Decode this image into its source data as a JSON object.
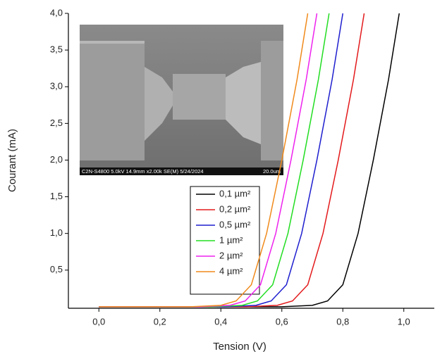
{
  "chart_data": {
    "type": "line",
    "xlabel": "Tension (V)",
    "ylabel": "Courant (mA)",
    "xlim": [
      -0.1,
      1.1
    ],
    "ylim": [
      -0.02,
      4.0
    ],
    "xticks": [
      {
        "value": 0,
        "label": "0,0"
      },
      {
        "value": 0.2,
        "label": "0,2"
      },
      {
        "value": 0.4,
        "label": "0,4"
      },
      {
        "value": 0.6,
        "label": "0,6"
      },
      {
        "value": 0.8,
        "label": "0,8"
      },
      {
        "value": 1.0,
        "label": "1,0"
      }
    ],
    "yticks": [
      {
        "value": 0.5,
        "label": "0,5"
      },
      {
        "value": 1.0,
        "label": "1,0"
      },
      {
        "value": 1.5,
        "label": "1,5"
      },
      {
        "value": 2.0,
        "label": "2,0"
      },
      {
        "value": 2.5,
        "label": "2,5"
      },
      {
        "value": 3.0,
        "label": "3,0"
      },
      {
        "value": 3.5,
        "label": "3,5"
      },
      {
        "value": 4.0,
        "label": "4,0"
      }
    ],
    "series": [
      {
        "name": "0,1 µm²",
        "color": "#000000",
        "x": [
          0,
          0.5,
          0.6,
          0.7,
          0.75,
          0.8,
          0.85,
          0.9,
          0.95,
          0.985
        ],
        "values": [
          0,
          0,
          0,
          0.02,
          0.08,
          0.3,
          1.0,
          2.0,
          3.1,
          4.0
        ]
      },
      {
        "name": "0,2 µm²",
        "color": "#e31a1c",
        "x": [
          0,
          0.385,
          0.485,
          0.585,
          0.635,
          0.685,
          0.735,
          0.785,
          0.835,
          0.87
        ],
        "values": [
          0,
          0,
          0,
          0.02,
          0.08,
          0.3,
          1.0,
          2.0,
          3.1,
          4.0
        ]
      },
      {
        "name": "0,5 µm²",
        "color": "#1f1fcf",
        "x": [
          0,
          0.315,
          0.415,
          0.515,
          0.565,
          0.615,
          0.665,
          0.715,
          0.765,
          0.8
        ],
        "values": [
          0,
          0,
          0,
          0.02,
          0.08,
          0.3,
          1.0,
          2.0,
          3.1,
          4.0
        ]
      },
      {
        "name": "1 µm²",
        "color": "#22dd22",
        "x": [
          0,
          0.27,
          0.37,
          0.47,
          0.52,
          0.57,
          0.62,
          0.67,
          0.72,
          0.755
        ],
        "values": [
          0,
          0,
          0,
          0.02,
          0.08,
          0.3,
          1.0,
          2.0,
          3.1,
          4.0
        ]
      },
      {
        "name": "2 µm²",
        "color": "#ee22ee",
        "x": [
          0,
          0.23,
          0.33,
          0.43,
          0.48,
          0.53,
          0.58,
          0.63,
          0.68,
          0.715
        ],
        "values": [
          0,
          0,
          0,
          0.02,
          0.08,
          0.3,
          1.0,
          2.0,
          3.1,
          4.0
        ]
      },
      {
        "name": "4 µm²",
        "color": "#f08a1c",
        "x": [
          0,
          0.2,
          0.3,
          0.4,
          0.45,
          0.5,
          0.55,
          0.6,
          0.65,
          0.685
        ],
        "values": [
          0,
          0,
          0,
          0.02,
          0.08,
          0.3,
          1.0,
          2.0,
          3.1,
          4.0
        ]
      }
    ],
    "annotations": [
      "C2N-S4800 5.0kV 14.9mm x2.00k SE(M) 5/24/2024",
      "20.0um"
    ]
  }
}
